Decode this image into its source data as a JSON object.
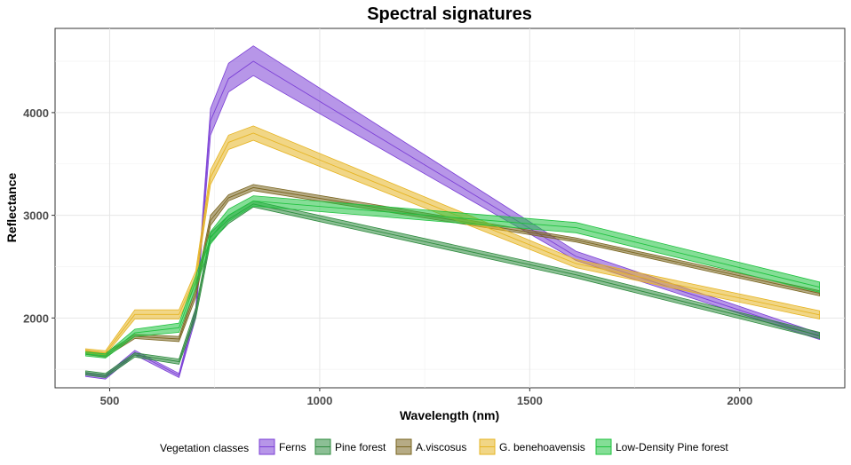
{
  "chart_data": {
    "type": "area",
    "title": "Spectral signatures",
    "xlabel": "Wavelength (nm)",
    "ylabel": "Reflectance",
    "xlim": [
      370,
      2250
    ],
    "ylim": [
      1320,
      4820
    ],
    "x_ticks": [
      500,
      1000,
      1500,
      2000
    ],
    "x_tick_labels": [
      "500",
      "1000",
      "1500",
      "2000"
    ],
    "y_ticks": [
      2000,
      3000,
      4000
    ],
    "y_tick_labels": [
      "2000",
      "3000",
      "4000"
    ],
    "grid": true,
    "legend_position": "bottom",
    "legend_title": "Vegetation classes",
    "x": [
      443,
      490,
      560,
      665,
      705,
      740,
      783,
      842,
      1610,
      2190
    ],
    "series": [
      {
        "name": "Ferns",
        "color": "#7b3fd6",
        "mean": [
          1450,
          1425,
          1665,
          1440,
          2050,
          3920,
          4330,
          4500,
          2600,
          1820
        ],
        "lower": [
          1430,
          1405,
          1640,
          1420,
          2000,
          3780,
          4200,
          4360,
          2560,
          1790
        ],
        "upper": [
          1470,
          1445,
          1685,
          1460,
          2100,
          4040,
          4480,
          4650,
          2650,
          1850
        ]
      },
      {
        "name": "Pine forest",
        "color": "#2e8b3e",
        "mean": [
          1465,
          1440,
          1640,
          1575,
          2050,
          2790,
          2960,
          3110,
          2420,
          1830
        ],
        "lower": [
          1445,
          1420,
          1620,
          1550,
          2000,
          2740,
          2920,
          3080,
          2390,
          1800
        ],
        "upper": [
          1485,
          1460,
          1660,
          1600,
          2100,
          2830,
          3000,
          3140,
          2450,
          1860
        ]
      },
      {
        "name": "A.viscosus",
        "color": "#7a6620",
        "mean": [
          1665,
          1640,
          1820,
          1795,
          2250,
          2950,
          3170,
          3270,
          2760,
          2240
        ],
        "lower": [
          1645,
          1620,
          1800,
          1770,
          2200,
          2900,
          3140,
          3240,
          2740,
          2215
        ],
        "upper": [
          1685,
          1660,
          1840,
          1820,
          2300,
          3000,
          3200,
          3300,
          2780,
          2265
        ]
      },
      {
        "name": "G. benehoavensis",
        "color": "#e6b422",
        "mean": [
          1680,
          1660,
          2035,
          2035,
          2400,
          3370,
          3710,
          3800,
          2530,
          2030
        ],
        "lower": [
          1660,
          1640,
          1990,
          1990,
          2340,
          3300,
          3640,
          3730,
          2490,
          1990
        ],
        "upper": [
          1700,
          1680,
          2080,
          2080,
          2460,
          3440,
          3780,
          3870,
          2570,
          2070
        ]
      },
      {
        "name": "Low-Density Pine forest",
        "color": "#1fc23f",
        "mean": [
          1650,
          1630,
          1855,
          1905,
          2350,
          2780,
          3000,
          3140,
          2880,
          2300
        ],
        "lower": [
          1630,
          1610,
          1820,
          1860,
          2290,
          2720,
          2940,
          3090,
          2830,
          2250
        ],
        "upper": [
          1670,
          1650,
          1890,
          1950,
          2410,
          2840,
          3060,
          3190,
          2930,
          2350
        ]
      }
    ]
  }
}
